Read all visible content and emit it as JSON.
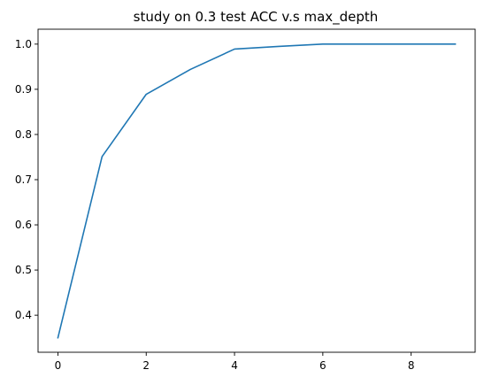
{
  "chart_data": {
    "type": "line",
    "title": "study on 0.3 test ACC v.s max_depth",
    "xlabel": "",
    "ylabel": "",
    "xlim": [
      -0.45,
      9.45
    ],
    "ylim": [
      0.318,
      1.033
    ],
    "x_ticks": [
      0,
      2,
      4,
      6,
      8
    ],
    "y_ticks": [
      0.4,
      0.5,
      0.6,
      0.7,
      0.8,
      0.9,
      1.0
    ],
    "x_tick_labels": [
      "0",
      "2",
      "4",
      "6",
      "8"
    ],
    "y_tick_labels": [
      "0.4",
      "0.5",
      "0.6",
      "0.7",
      "0.8",
      "0.9",
      "1.0"
    ],
    "grid": false,
    "legend": "none",
    "series": [
      {
        "color": "#1f77b4",
        "x": [
          0,
          1,
          2,
          3,
          4,
          5,
          6,
          7,
          8,
          9
        ],
        "y": [
          0.35,
          0.751,
          0.889,
          0.944,
          0.989,
          0.995,
          1.0,
          1.0,
          1.0,
          1.0
        ]
      }
    ]
  }
}
